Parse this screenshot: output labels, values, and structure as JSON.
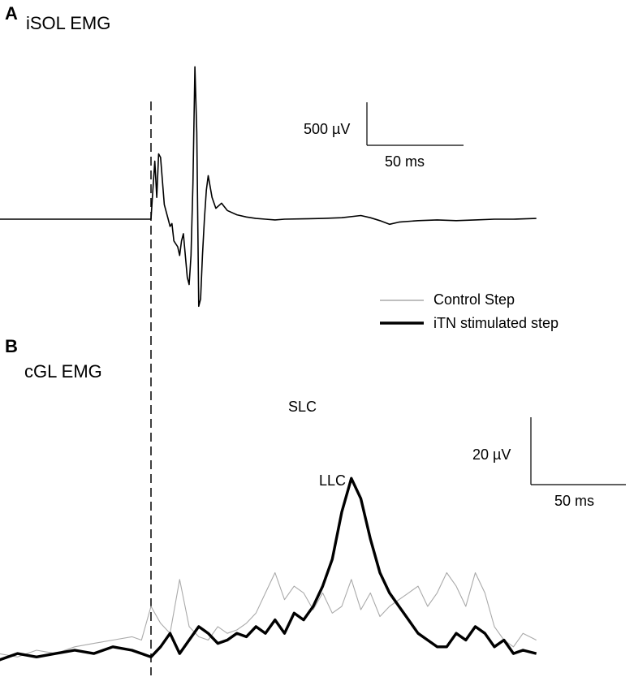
{
  "panels": [
    {
      "letter": "A",
      "title": "iSOL EMG"
    },
    {
      "letter": "B",
      "title": "cGL EMG"
    }
  ],
  "legend": [
    {
      "label": "Control Step",
      "color": "#aaaaaa"
    },
    {
      "label": "iTN stimulated step",
      "color": "#000000"
    }
  ],
  "annotations": {
    "slc": "SLC",
    "llc": "LLC"
  },
  "scalebars": {
    "a": {
      "amplitude": "500 µV",
      "time": "50 ms"
    },
    "b": {
      "amplitude": "20 µV",
      "time": "50 ms"
    }
  },
  "chart_data": [
    {
      "type": "line",
      "title": "iSOL EMG",
      "units": {
        "x": "ms",
        "y": "µV"
      },
      "xlim": [
        -162,
        202
      ],
      "grid": false,
      "series": [
        {
          "name": "iTN stimulated step",
          "color": "#000000",
          "x": [
            -162,
            -100,
            -50,
            0,
            1,
            2,
            3,
            4,
            5,
            7,
            9,
            10,
            11,
            12,
            14,
            15,
            16,
            17,
            18,
            19,
            20,
            21,
            22,
            23,
            24,
            25,
            26,
            27,
            28,
            29,
            30,
            32,
            34,
            37,
            40,
            45,
            50,
            55,
            60,
            65,
            70,
            80,
            90,
            100,
            110,
            115,
            120,
            125,
            130,
            140,
            150,
            160,
            170,
            180,
            190,
            202
          ],
          "y": [
            0,
            0,
            0,
            0,
            400,
            800,
            300,
            900,
            850,
            200,
            0,
            -100,
            -60,
            -300,
            -380,
            -500,
            -300,
            -200,
            -500,
            -800,
            -900,
            -500,
            500,
            2100,
            1200,
            -1200,
            -1100,
            -500,
            0,
            400,
            600,
            300,
            150,
            220,
            120,
            60,
            30,
            10,
            0,
            -10,
            0,
            5,
            10,
            20,
            50,
            20,
            -20,
            -70,
            -40,
            -20,
            -10,
            -20,
            -10,
            0,
            0,
            10
          ]
        }
      ]
    },
    {
      "type": "line",
      "title": "cGL EMG",
      "units": {
        "x": "ms",
        "y": "µV"
      },
      "xlim": [
        -162,
        202
      ],
      "grid": false,
      "series": [
        {
          "name": "Control Step",
          "color": "#aaaaaa",
          "x": [
            -162,
            -150,
            -140,
            -130,
            -120,
            -110,
            -100,
            -90,
            -80,
            -70,
            -60,
            -50,
            -40,
            -30,
            -20,
            -10,
            -5,
            0,
            5,
            10,
            15,
            20,
            25,
            30,
            35,
            40,
            45,
            50,
            55,
            60,
            65,
            70,
            75,
            80,
            85,
            90,
            95,
            100,
            105,
            110,
            115,
            120,
            125,
            130,
            135,
            140,
            145,
            150,
            155,
            160,
            165,
            170,
            175,
            180,
            185,
            190,
            195,
            202
          ],
          "y": [
            0,
            3,
            1,
            4,
            2,
            3,
            5,
            4,
            6,
            5,
            7,
            6,
            8,
            9,
            10,
            11,
            10,
            20,
            15,
            12,
            28,
            14,
            11,
            10,
            14,
            12,
            13,
            15,
            18,
            24,
            30,
            22,
            26,
            24,
            19,
            24,
            18,
            20,
            28,
            19,
            24,
            17,
            20,
            22,
            24,
            26,
            20,
            24,
            30,
            26,
            20,
            30,
            24,
            14,
            10,
            8,
            12,
            10
          ]
        },
        {
          "name": "iTN stimulated step",
          "color": "#000000",
          "x": [
            -162,
            -150,
            -140,
            -130,
            -120,
            -110,
            -100,
            -90,
            -80,
            -70,
            -60,
            -50,
            -40,
            -30,
            -20,
            -10,
            -5,
            0,
            5,
            10,
            15,
            20,
            25,
            30,
            35,
            40,
            45,
            50,
            55,
            60,
            65,
            70,
            75,
            80,
            85,
            90,
            95,
            100,
            105,
            110,
            115,
            120,
            125,
            130,
            135,
            140,
            145,
            150,
            155,
            160,
            165,
            170,
            175,
            180,
            185,
            190,
            195,
            202
          ],
          "y": [
            0,
            2,
            3,
            2,
            4,
            3,
            4,
            5,
            4,
            6,
            5,
            6,
            7,
            6,
            8,
            7,
            6,
            5,
            8,
            12,
            6,
            10,
            14,
            12,
            9,
            10,
            12,
            11,
            14,
            12,
            16,
            12,
            18,
            16,
            20,
            26,
            34,
            48,
            58,
            52,
            40,
            30,
            24,
            20,
            16,
            12,
            10,
            8,
            8,
            12,
            10,
            14,
            12,
            8,
            10,
            6,
            7,
            6
          ]
        }
      ]
    }
  ]
}
